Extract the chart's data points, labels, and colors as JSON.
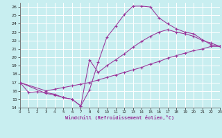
{
  "xlabel": "Windchill (Refroidissement éolien,°C)",
  "bg_color": "#c8eef0",
  "grid_color": "#ffffff",
  "line_color": "#993399",
  "xlim": [
    0,
    23
  ],
  "ylim": [
    14,
    26.5
  ],
  "xticks": [
    0,
    1,
    2,
    3,
    4,
    5,
    6,
    7,
    8,
    9,
    10,
    11,
    12,
    13,
    14,
    15,
    16,
    17,
    18,
    19,
    20,
    21,
    22,
    23
  ],
  "yticks": [
    14,
    15,
    16,
    17,
    18,
    19,
    20,
    21,
    22,
    23,
    24,
    25,
    26
  ],
  "line1_x": [
    0,
    1,
    2,
    3,
    4,
    5,
    6,
    7,
    8,
    9,
    10,
    11,
    12,
    13,
    14,
    15,
    16,
    17,
    18,
    19,
    20,
    21,
    22,
    23
  ],
  "line1_y": [
    17.0,
    15.8,
    15.9,
    15.8,
    15.6,
    15.2,
    15.0,
    14.2,
    16.1,
    19.4,
    22.4,
    23.7,
    25.1,
    26.1,
    26.1,
    26.0,
    24.7,
    24.0,
    23.4,
    23.0,
    22.8,
    22.1,
    21.5,
    21.3
  ],
  "line2_x": [
    0,
    3,
    4,
    5,
    6,
    7,
    8,
    9,
    10,
    11,
    12,
    13,
    14,
    15,
    16,
    17,
    18,
    19,
    20,
    21,
    22,
    23
  ],
  "line2_y": [
    17.0,
    15.7,
    15.5,
    15.2,
    15.0,
    14.2,
    19.7,
    18.2,
    19.0,
    19.7,
    20.4,
    21.2,
    21.9,
    22.5,
    23.0,
    23.3,
    23.0,
    22.8,
    22.5,
    22.0,
    21.7,
    21.3
  ],
  "line3_x": [
    0,
    3,
    4,
    5,
    6,
    7,
    8,
    9,
    10,
    11,
    12,
    13,
    14,
    15,
    16,
    17,
    18,
    19,
    20,
    21,
    22,
    23
  ],
  "line3_y": [
    17.0,
    16.0,
    16.2,
    16.4,
    16.6,
    16.8,
    17.0,
    17.3,
    17.6,
    17.9,
    18.2,
    18.5,
    18.8,
    19.2,
    19.5,
    19.9,
    20.2,
    20.5,
    20.8,
    21.0,
    21.3,
    21.3
  ],
  "marker_x1": [
    0,
    1,
    2,
    3,
    4,
    5,
    6,
    7,
    8,
    9,
    10,
    11,
    12,
    13,
    14,
    15,
    16,
    17,
    18,
    19,
    20,
    21,
    22,
    23
  ],
  "marker_y1": [
    17.0,
    15.8,
    15.9,
    15.8,
    15.6,
    15.2,
    15.0,
    14.2,
    16.1,
    19.4,
    22.4,
    23.7,
    25.1,
    26.1,
    26.1,
    26.0,
    24.7,
    24.0,
    23.4,
    23.0,
    22.8,
    22.1,
    21.5,
    21.3
  ],
  "marker_x2": [
    0,
    3,
    4,
    5,
    6,
    7,
    8,
    9,
    10,
    11,
    12,
    13,
    14,
    15,
    16,
    17,
    18,
    19,
    20,
    21,
    22,
    23
  ],
  "marker_y2": [
    17.0,
    15.7,
    15.5,
    15.2,
    15.0,
    14.2,
    19.7,
    18.2,
    19.0,
    19.7,
    20.4,
    21.2,
    21.9,
    22.5,
    23.0,
    23.3,
    23.0,
    22.8,
    22.5,
    22.0,
    21.7,
    21.3
  ],
  "marker_x3": [
    0,
    3,
    4,
    5,
    6,
    7,
    8,
    9,
    10,
    11,
    12,
    13,
    14,
    15,
    16,
    17,
    18,
    19,
    20,
    21,
    22,
    23
  ],
  "marker_y3": [
    17.0,
    16.0,
    16.2,
    16.4,
    16.6,
    16.8,
    17.0,
    17.3,
    17.6,
    17.9,
    18.2,
    18.5,
    18.8,
    19.2,
    19.5,
    19.9,
    20.2,
    20.5,
    20.8,
    21.0,
    21.3,
    21.3
  ]
}
